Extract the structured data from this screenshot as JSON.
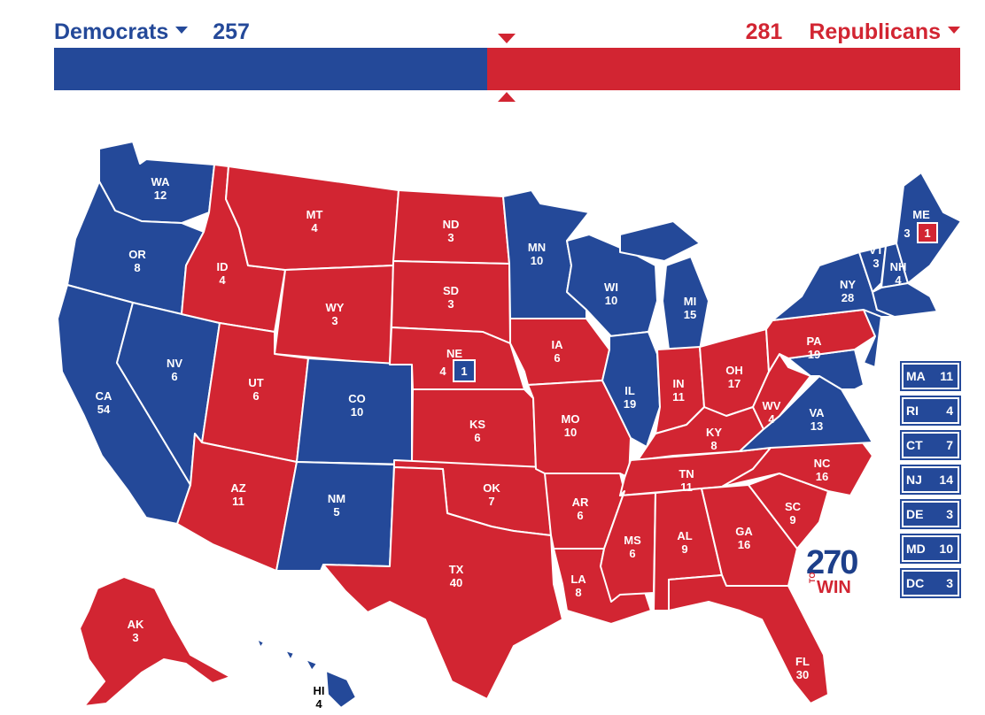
{
  "header": {
    "dem_label": "Democrats",
    "dem_total": "257",
    "rep_label": "Republicans",
    "rep_total": "281"
  },
  "bar": {
    "dem_votes": 257,
    "rep_votes": 281,
    "total_votes": 538
  },
  "colors": {
    "dem": "#244999",
    "rep": "#d22532"
  },
  "states": {
    "WA": {
      "name": "WA",
      "votes": "12",
      "party": "dem"
    },
    "OR": {
      "name": "OR",
      "votes": "8",
      "party": "dem"
    },
    "CA": {
      "name": "CA",
      "votes": "54",
      "party": "dem"
    },
    "NV": {
      "name": "NV",
      "votes": "6",
      "party": "dem"
    },
    "ID": {
      "name": "ID",
      "votes": "4",
      "party": "rep"
    },
    "MT": {
      "name": "MT",
      "votes": "4",
      "party": "rep"
    },
    "WY": {
      "name": "WY",
      "votes": "3",
      "party": "rep"
    },
    "UT": {
      "name": "UT",
      "votes": "6",
      "party": "rep"
    },
    "AZ": {
      "name": "AZ",
      "votes": "11",
      "party": "rep"
    },
    "CO": {
      "name": "CO",
      "votes": "10",
      "party": "dem"
    },
    "NM": {
      "name": "NM",
      "votes": "5",
      "party": "dem"
    },
    "ND": {
      "name": "ND",
      "votes": "3",
      "party": "rep"
    },
    "SD": {
      "name": "SD",
      "votes": "3",
      "party": "rep"
    },
    "NE": {
      "name": "NE",
      "votes": "4",
      "party": "rep",
      "district_votes": "1",
      "district_party": "dem"
    },
    "KS": {
      "name": "KS",
      "votes": "6",
      "party": "rep"
    },
    "OK": {
      "name": "OK",
      "votes": "7",
      "party": "rep"
    },
    "TX": {
      "name": "TX",
      "votes": "40",
      "party": "rep"
    },
    "MN": {
      "name": "MN",
      "votes": "10",
      "party": "dem"
    },
    "IA": {
      "name": "IA",
      "votes": "6",
      "party": "rep"
    },
    "MO": {
      "name": "MO",
      "votes": "10",
      "party": "rep"
    },
    "AR": {
      "name": "AR",
      "votes": "6",
      "party": "rep"
    },
    "LA": {
      "name": "LA",
      "votes": "8",
      "party": "rep"
    },
    "WI": {
      "name": "WI",
      "votes": "10",
      "party": "dem"
    },
    "IL": {
      "name": "IL",
      "votes": "19",
      "party": "dem"
    },
    "MI": {
      "name": "MI",
      "votes": "15",
      "party": "dem"
    },
    "IN": {
      "name": "IN",
      "votes": "11",
      "party": "rep"
    },
    "OH": {
      "name": "OH",
      "votes": "17",
      "party": "rep"
    },
    "KY": {
      "name": "KY",
      "votes": "8",
      "party": "rep"
    },
    "TN": {
      "name": "TN",
      "votes": "11",
      "party": "rep"
    },
    "MS": {
      "name": "MS",
      "votes": "6",
      "party": "rep"
    },
    "AL": {
      "name": "AL",
      "votes": "9",
      "party": "rep"
    },
    "GA": {
      "name": "GA",
      "votes": "16",
      "party": "rep"
    },
    "FL": {
      "name": "FL",
      "votes": "30",
      "party": "rep"
    },
    "SC": {
      "name": "SC",
      "votes": "9",
      "party": "rep"
    },
    "NC": {
      "name": "NC",
      "votes": "16",
      "party": "rep"
    },
    "VA": {
      "name": "VA",
      "votes": "13",
      "party": "dem"
    },
    "WV": {
      "name": "WV",
      "votes": "4",
      "party": "rep"
    },
    "PA": {
      "name": "PA",
      "votes": "19",
      "party": "rep"
    },
    "NY": {
      "name": "NY",
      "votes": "28",
      "party": "dem"
    },
    "VT": {
      "name": "VT",
      "votes": "3",
      "party": "dem"
    },
    "NH": {
      "name": "NH",
      "votes": "4",
      "party": "dem"
    },
    "ME": {
      "name": "ME",
      "votes": "3",
      "party": "dem",
      "district_votes": "1",
      "district_party": "rep"
    },
    "AK": {
      "name": "AK",
      "votes": "3",
      "party": "rep"
    },
    "HI": {
      "name": "HI",
      "votes": "4",
      "party": "dem"
    }
  },
  "small_states": [
    {
      "name": "MA",
      "votes": "11",
      "party": "dem"
    },
    {
      "name": "RI",
      "votes": "4",
      "party": "dem"
    },
    {
      "name": "CT",
      "votes": "7",
      "party": "dem"
    },
    {
      "name": "NJ",
      "votes": "14",
      "party": "dem"
    },
    {
      "name": "DE",
      "votes": "3",
      "party": "dem"
    },
    {
      "name": "MD",
      "votes": "10",
      "party": "dem"
    },
    {
      "name": "DC",
      "votes": "3",
      "party": "dem"
    }
  ],
  "logo": {
    "number": "270",
    "to": "TO",
    "win": "WIN"
  }
}
